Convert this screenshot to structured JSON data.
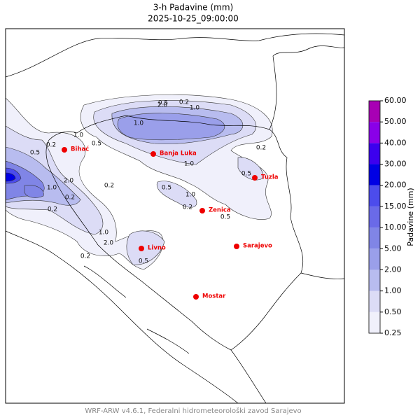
{
  "header": {
    "title": "3-h Padavine (mm)",
    "subtitle": "2025-10-25_09:00:00"
  },
  "map": {
    "cities": [
      {
        "name": "Bihać"
      },
      {
        "name": "Banja Luka"
      },
      {
        "name": "Tuzla"
      },
      {
        "name": "Zenica"
      },
      {
        "name": "Sarajevo"
      },
      {
        "name": "Livno"
      },
      {
        "name": "Mostar"
      }
    ],
    "contour_labels": [
      "0.5",
      "0.2",
      "1.0",
      "2.0",
      "1.0",
      "0.5",
      "1.0",
      "0.2",
      "0.5",
      "1.0",
      "0.2",
      "0.2",
      "2.0",
      "1.0",
      "0.2",
      "1.0",
      "2.0",
      "0.5",
      "0.2",
      "0.5",
      "0.2",
      "0.5",
      "1.0",
      "0.2",
      "0.5"
    ]
  },
  "colorbar": {
    "label": "Padavine (mm)",
    "ticks": [
      {
        "value": 0.25,
        "label": "0.25"
      },
      {
        "value": 0.5,
        "label": "0.50"
      },
      {
        "value": 1,
        "label": "1.00"
      },
      {
        "value": 2,
        "label": "2.00"
      },
      {
        "value": 5,
        "label": "5.00"
      },
      {
        "value": 10,
        "label": "10.00"
      },
      {
        "value": 15,
        "label": "15.00"
      },
      {
        "value": 20,
        "label": "20.00"
      },
      {
        "value": 30,
        "label": "30.00"
      },
      {
        "value": 40,
        "label": "40.00"
      },
      {
        "value": 50,
        "label": "50.00"
      },
      {
        "value": 60,
        "label": "60.00"
      }
    ],
    "colors": [
      "#f0f0fb",
      "#dcdcf6",
      "#b8bcef",
      "#9a9fea",
      "#8085e6",
      "#6a6ae8",
      "#4c4cec",
      "#0000e4",
      "#3c00ee",
      "#8a00e8",
      "#a800b4"
    ]
  },
  "footer": "WRF-ARW v4.6.1, Federalni hidrometeorološki zavod Sarajevo"
}
